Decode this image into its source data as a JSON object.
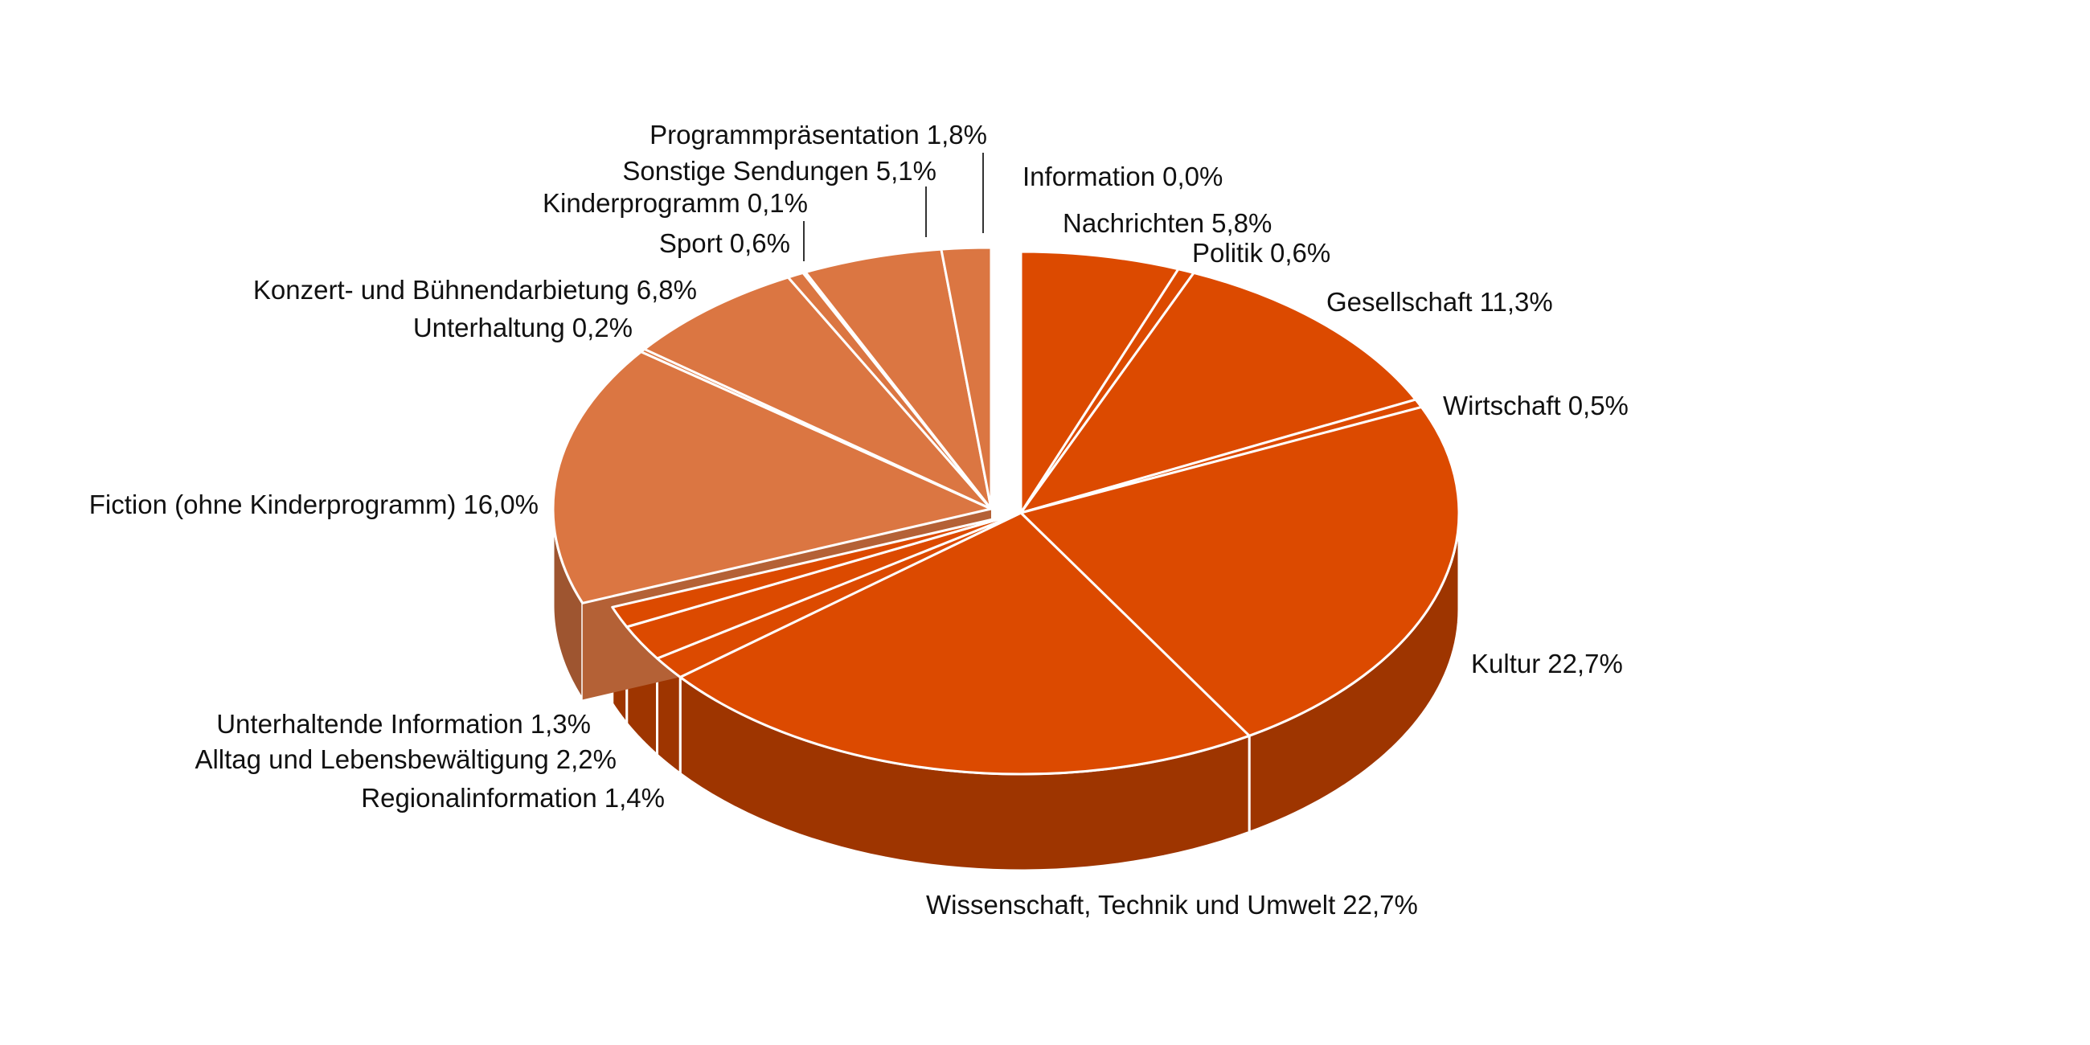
{
  "chart_data": {
    "type": "pie",
    "categories": [
      "Information",
      "Nachrichten",
      "Politik",
      "Gesellschaft",
      "Wirtschaft",
      "Kultur",
      "Wissenschaft, Technik und Umwelt",
      "Regionalinformation",
      "Alltag und Lebensbewältigung",
      "Unterhaltende Information",
      "Fiction (ohne Kinderprogramm)",
      "Unterhaltung",
      "Konzert- und Bühnendarbietung",
      "Sport",
      "Kinderprogramm",
      "Sonstige Sendungen",
      "Programmpräsentation"
    ],
    "values": [
      0.0,
      5.8,
      0.6,
      11.3,
      0.5,
      22.7,
      22.7,
      1.4,
      2.2,
      1.3,
      16.0,
      0.2,
      6.8,
      0.6,
      0.1,
      5.1,
      1.8
    ],
    "value_labels": [
      "0,0%",
      "5,8%",
      "0,6%",
      "11,3%",
      "0,5%",
      "22,7%",
      "22,7%",
      "1,4%",
      "2,2%",
      "1,3%",
      "16,0%",
      "0,2%",
      "6,8%",
      "0,6%",
      "0,1%",
      "5,1%",
      "1,8%"
    ],
    "colors": [
      "#dc4a00",
      "#dc4a00",
      "#dc4a00",
      "#dc4a00",
      "#dc4a00",
      "#dc4a00",
      "#dc4a00",
      "#dc4a00",
      "#dc4a00",
      "#dc4a00",
      "#db7642",
      "#db7642",
      "#db7642",
      "#db7642",
      "#db7642",
      "#db7642",
      "#db7642"
    ]
  }
}
